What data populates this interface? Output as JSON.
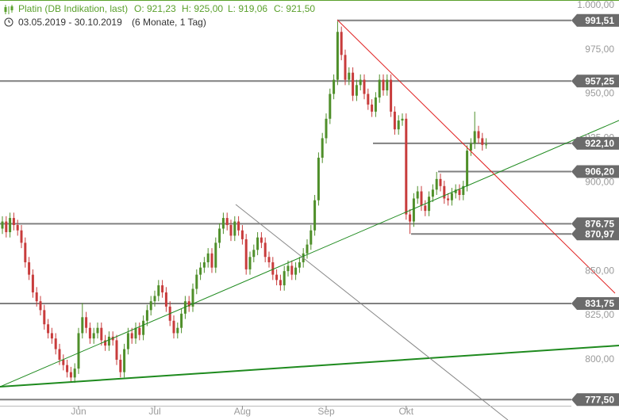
{
  "header": {
    "title": "Platin (DB Indikation, last)",
    "open": "O: 921,23",
    "high": "H: 925,00",
    "low": "L: 919,06",
    "close": "C: 921,50",
    "range": "03.05.2019 - 30.10.2019",
    "period": "(6 Monate, 1 Tag)"
  },
  "chart_data": {
    "type": "candlestick",
    "categories": [
      null,
      null,
      null,
      null,
      null,
      null,
      null,
      null,
      null,
      null,
      null,
      null,
      null,
      null,
      null,
      null,
      null,
      null,
      null,
      null,
      "Jun",
      null,
      null,
      null,
      null,
      null,
      null,
      null,
      null,
      null,
      null,
      null,
      null,
      null,
      null,
      null,
      null,
      null,
      null,
      null,
      "Jul",
      null,
      null,
      null,
      null,
      null,
      null,
      null,
      null,
      null,
      null,
      null,
      null,
      null,
      null,
      null,
      null,
      null,
      null,
      null,
      null,
      null,
      null,
      "Aug",
      null,
      null,
      null,
      null,
      null,
      null,
      null,
      null,
      null,
      null,
      null,
      null,
      null,
      null,
      null,
      null,
      null,
      null,
      null,
      null,
      null,
      "Sep",
      null,
      null,
      null,
      null,
      null,
      null,
      null,
      null,
      null,
      null,
      null,
      null,
      null,
      null,
      null,
      null,
      null,
      null,
      null,
      null,
      "Okt",
      null,
      null,
      null,
      null,
      null,
      null,
      null,
      null,
      null,
      null,
      null,
      null,
      null,
      null,
      null,
      null,
      null,
      null,
      null,
      null,
      null
    ],
    "open": [
      874,
      878,
      872,
      880,
      876,
      873,
      866,
      855,
      848,
      838,
      833,
      828,
      820,
      815,
      812,
      806,
      800,
      797,
      793,
      790,
      795,
      815,
      824,
      818,
      812,
      815,
      818,
      811,
      808,
      813,
      811,
      800,
      793,
      806,
      815,
      812,
      818,
      814,
      822,
      828,
      833,
      836,
      842,
      838,
      830,
      822,
      815,
      818,
      826,
      833,
      830,
      840,
      848,
      852,
      855,
      860,
      852,
      866,
      874,
      880,
      876,
      870,
      878,
      873,
      868,
      851,
      858,
      862,
      869,
      866,
      858,
      855,
      848,
      845,
      842,
      850,
      853,
      848,
      852,
      855,
      860,
      865,
      873,
      890,
      914,
      925,
      936,
      950,
      958,
      985,
      972,
      958,
      962,
      949,
      955,
      958,
      950,
      944,
      940,
      948,
      958,
      952,
      958,
      940,
      930,
      935,
      936,
      882,
      878,
      891,
      895,
      887,
      884,
      892,
      896,
      902,
      898,
      891,
      890,
      894,
      896,
      893,
      898,
      918,
      922,
      929,
      925,
      921.23
    ],
    "high": [
      881,
      881,
      883,
      883,
      879,
      876,
      869,
      858,
      851,
      841,
      836,
      831,
      823,
      818,
      815,
      809,
      803,
      800,
      796,
      798,
      818,
      832,
      827,
      821,
      818,
      821,
      821,
      814,
      816,
      816,
      814,
      803,
      809,
      818,
      818,
      821,
      821,
      825,
      831,
      836,
      839,
      845,
      845,
      841,
      833,
      825,
      821,
      829,
      836,
      836,
      843,
      851,
      855,
      858,
      863,
      863,
      869,
      877,
      883,
      883,
      879,
      881,
      881,
      876,
      871,
      861,
      865,
      872,
      872,
      869,
      861,
      858,
      851,
      848,
      853,
      856,
      856,
      855,
      858,
      863,
      868,
      876,
      893,
      917,
      928,
      939,
      953,
      961,
      991,
      988,
      975,
      965,
      965,
      958,
      961,
      961,
      953,
      947,
      951,
      961,
      961,
      961,
      961,
      943,
      938,
      939,
      939,
      885,
      894,
      898,
      898,
      890,
      895,
      899,
      906,
      905,
      901,
      894,
      897,
      899,
      899,
      901,
      921,
      925,
      940,
      932,
      928,
      925
    ],
    "low": [
      871,
      869,
      869,
      873,
      870,
      863,
      852,
      845,
      835,
      830,
      825,
      817,
      812,
      809,
      803,
      797,
      794,
      790,
      787,
      787,
      792,
      812,
      815,
      809,
      809,
      812,
      808,
      805,
      805,
      808,
      797,
      790,
      790,
      803,
      809,
      809,
      811,
      811,
      819,
      825,
      830,
      833,
      835,
      827,
      819,
      812,
      812,
      815,
      823,
      827,
      827,
      837,
      845,
      849,
      852,
      849,
      849,
      863,
      871,
      873,
      867,
      867,
      870,
      865,
      848,
      848,
      855,
      859,
      863,
      855,
      852,
      845,
      842,
      839,
      839,
      847,
      845,
      845,
      849,
      852,
      857,
      862,
      870,
      887,
      911,
      922,
      933,
      947,
      955,
      969,
      955,
      955,
      946,
      946,
      952,
      947,
      941,
      937,
      937,
      945,
      949,
      949,
      937,
      927,
      927,
      932,
      879,
      871,
      875,
      888,
      884,
      881,
      881,
      889,
      893,
      895,
      888,
      887,
      887,
      891,
      890,
      890,
      895,
      915,
      919,
      922,
      918,
      919.06
    ],
    "close": [
      878,
      872,
      880,
      876,
      873,
      866,
      855,
      848,
      838,
      833,
      828,
      820,
      815,
      812,
      806,
      800,
      797,
      793,
      790,
      795,
      815,
      824,
      818,
      812,
      815,
      818,
      811,
      808,
      813,
      811,
      800,
      793,
      806,
      815,
      812,
      818,
      814,
      822,
      828,
      833,
      836,
      842,
      838,
      830,
      822,
      815,
      818,
      826,
      833,
      830,
      840,
      848,
      852,
      855,
      860,
      852,
      866,
      874,
      880,
      876,
      870,
      878,
      873,
      868,
      851,
      858,
      862,
      869,
      866,
      858,
      855,
      848,
      845,
      842,
      850,
      853,
      848,
      852,
      855,
      860,
      865,
      873,
      890,
      914,
      925,
      936,
      950,
      958,
      985,
      972,
      958,
      962,
      949,
      955,
      958,
      950,
      944,
      940,
      948,
      958,
      952,
      958,
      940,
      930,
      935,
      936,
      882,
      878,
      891,
      895,
      887,
      884,
      892,
      896,
      902,
      898,
      891,
      890,
      894,
      896,
      893,
      898,
      918,
      922,
      929,
      925,
      921.23,
      921.5
    ],
    "up_color": "#4f8f2a",
    "down_color": "#c83c3c",
    "ylim": [
      766,
      1003
    ],
    "yticks": [
      {
        "value": 800,
        "label": "800,00"
      },
      {
        "value": 825,
        "label": "825,00"
      },
      {
        "value": 850,
        "label": "850,00"
      },
      {
        "value": 900,
        "label": "900,00"
      },
      {
        "value": 925,
        "label": "925,00"
      },
      {
        "value": 950,
        "label": "950,00"
      },
      {
        "value": 975,
        "label": "975,00"
      },
      {
        "value": 1000,
        "label": "1.000,00"
      }
    ],
    "grid": false,
    "levels": {
      "color": "#808080",
      "label_color": "#6b6b6b",
      "values": [
        991.51,
        957.25,
        922.1,
        906.2,
        876.75,
        870.97,
        831.75,
        777.5
      ],
      "value_labels": [
        "991,51",
        "957,25",
        "922,10",
        "906,20",
        "876,75",
        "870,97",
        "831,75",
        "777,50"
      ]
    }
  }
}
